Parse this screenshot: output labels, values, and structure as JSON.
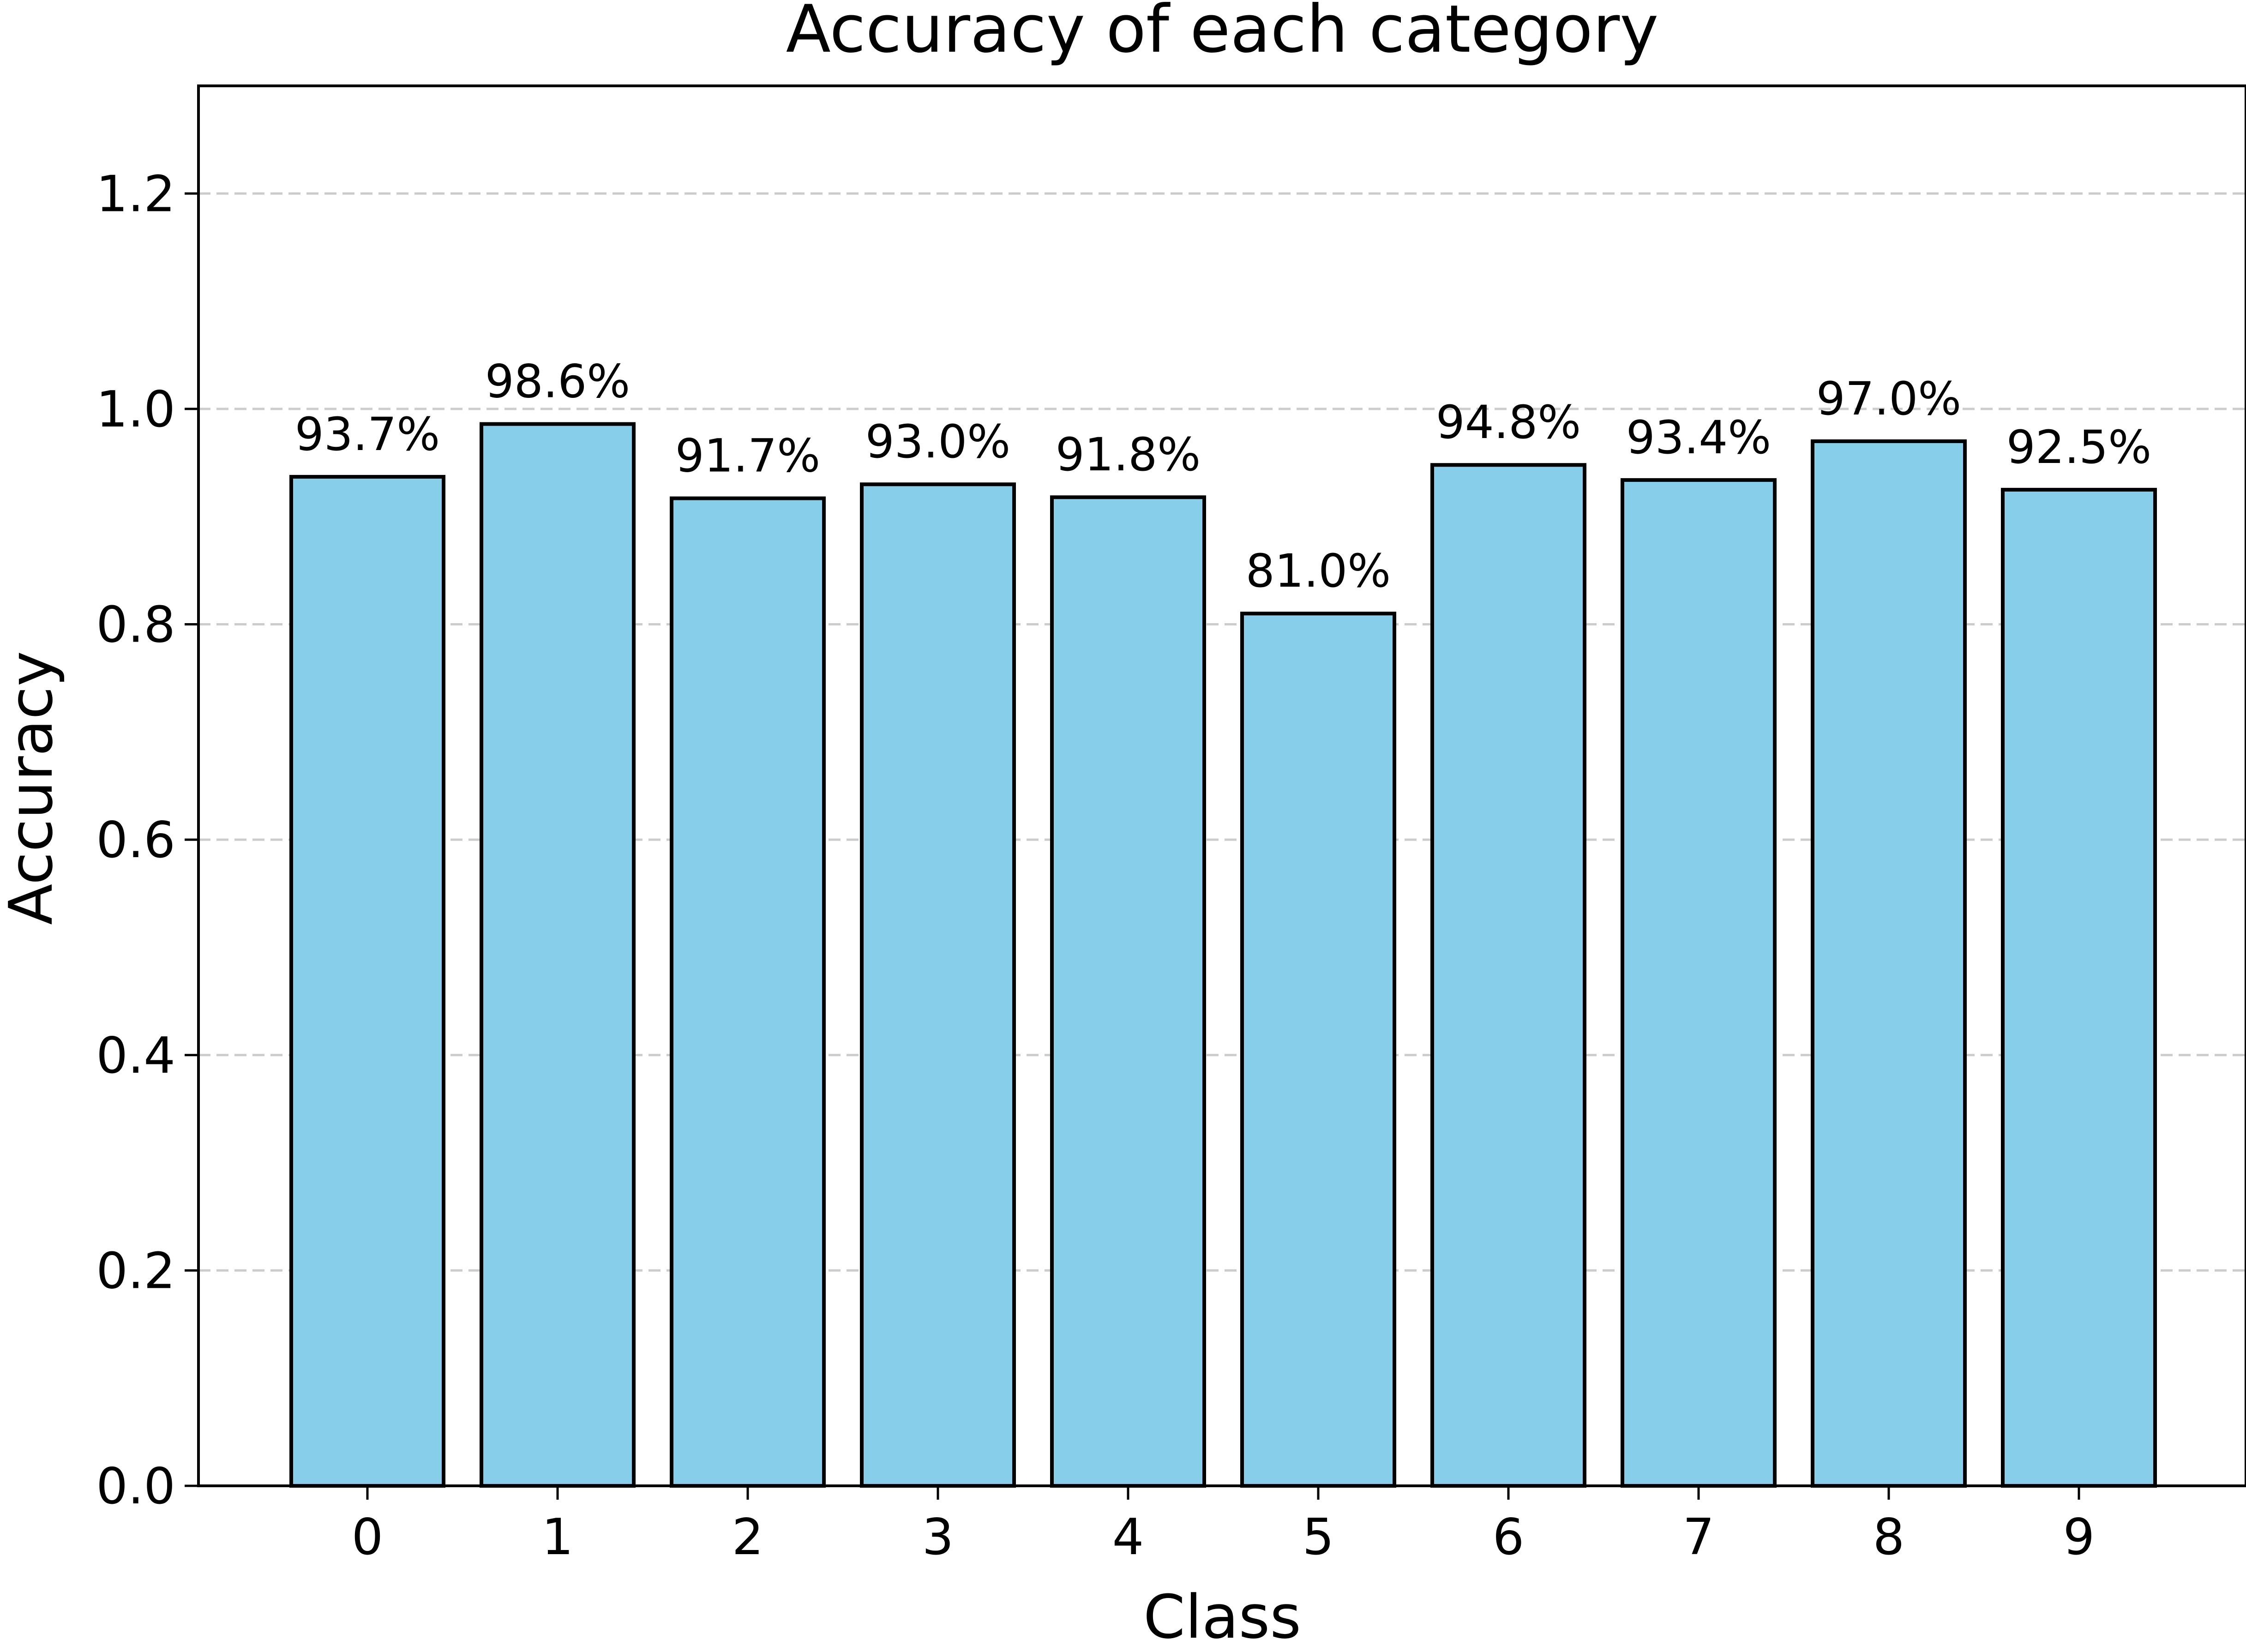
{
  "chart_data": {
    "type": "bar",
    "title": "Accuracy of each category",
    "xlabel": "Class",
    "ylabel": "Accuracy",
    "categories": [
      "0",
      "1",
      "2",
      "3",
      "4",
      "5",
      "6",
      "7",
      "8",
      "9"
    ],
    "values": [
      0.937,
      0.986,
      0.917,
      0.93,
      0.918,
      0.81,
      0.948,
      0.934,
      0.97,
      0.925
    ],
    "value_labels": [
      "93.7%",
      "98.6%",
      "91.7%",
      "93.0%",
      "91.8%",
      "81.0%",
      "94.8%",
      "93.4%",
      "97.0%",
      "92.5%"
    ],
    "ylim": [
      0,
      1.3
    ],
    "yticks": [
      0.0,
      0.2,
      0.4,
      0.6,
      0.8,
      1.0,
      1.2
    ],
    "ytick_labels": [
      "0.0",
      "0.2",
      "0.4",
      "0.6",
      "0.8",
      "1.0",
      "1.2"
    ],
    "grid": "y-dashed",
    "legend": "none",
    "colors": {
      "bar_fill": "#87ceeb",
      "bar_edge": "#000000",
      "grid": "#cccccc"
    }
  }
}
